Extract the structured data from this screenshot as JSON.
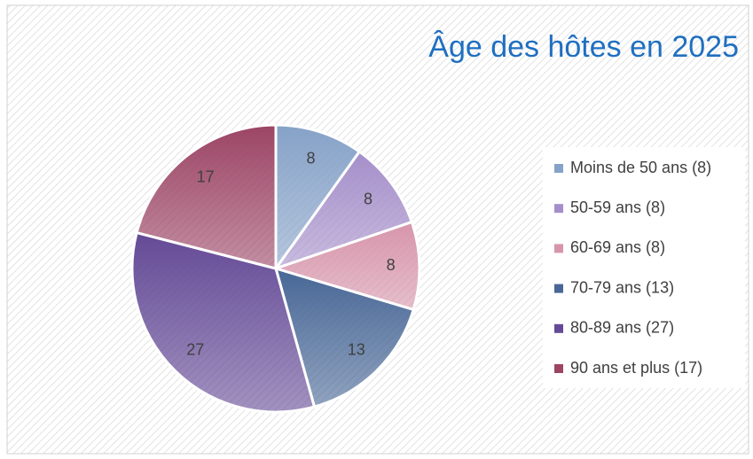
{
  "chart_data": {
    "type": "pie",
    "title": "Âge des hôtes en 2025",
    "categories": [
      "Moins de 50 ans (8)",
      "50-59 ans (8)",
      "60-69 ans (8)",
      "70-79 ans (13)",
      "80-89 ans (27)",
      "90 ans et plus (17)"
    ],
    "values": [
      8,
      8,
      8,
      13,
      27,
      17
    ],
    "colors": [
      "#86a2c8",
      "#a58fca",
      "#d795ab",
      "#486796",
      "#644a96",
      "#9c4565"
    ],
    "legend": "right"
  }
}
